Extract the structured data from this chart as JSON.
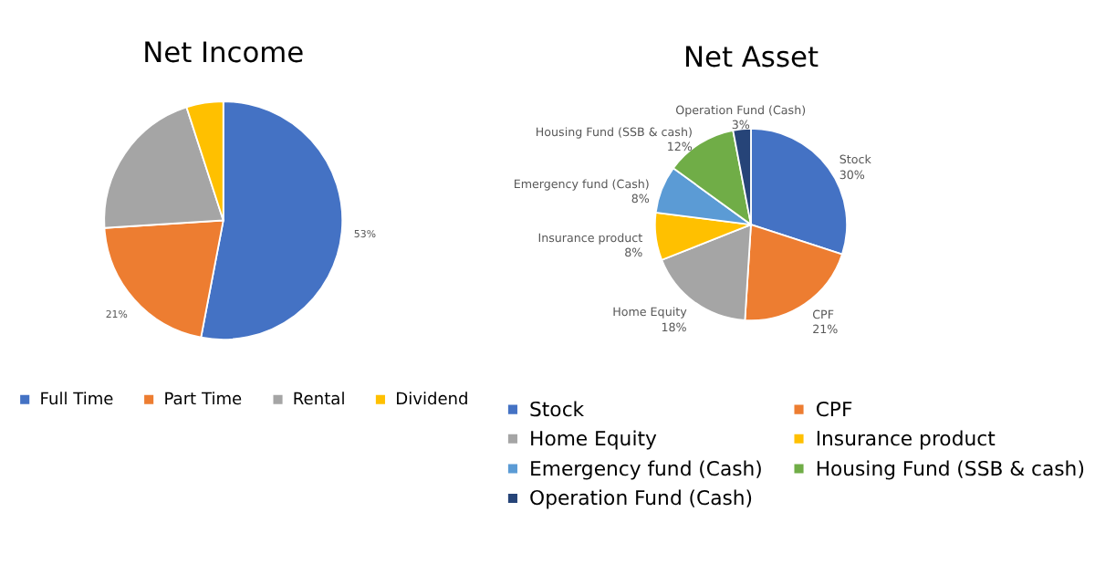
{
  "chart_data": [
    {
      "type": "pie",
      "title": "Net Income",
      "categories": [
        "Full Time",
        "Part Time",
        "Rental",
        "Dividend"
      ],
      "values": [
        53,
        21,
        21,
        5
      ],
      "colors": [
        "#4472c4",
        "#ed7d31",
        "#a5a5a5",
        "#ffc000"
      ],
      "value_labels": [
        "53%",
        "21%",
        null,
        null
      ],
      "legend": "bottom"
    },
    {
      "type": "pie",
      "title": "Net Asset",
      "categories": [
        "Stock",
        "CPF",
        "Home Equity",
        "Insurance product",
        "Emergency fund (Cash)",
        "Housing Fund (SSB & cash)",
        "Operation Fund (Cash)"
      ],
      "values": [
        30,
        21,
        18,
        8,
        8,
        12,
        3
      ],
      "colors": [
        "#4472c4",
        "#ed7d31",
        "#a5a5a5",
        "#ffc000",
        "#5b9bd5",
        "#70ad47",
        "#264478"
      ],
      "value_labels": [
        "30%",
        "21%",
        "18%",
        "8%",
        "8%",
        "12%",
        "3%"
      ],
      "legend": "bottom"
    }
  ]
}
